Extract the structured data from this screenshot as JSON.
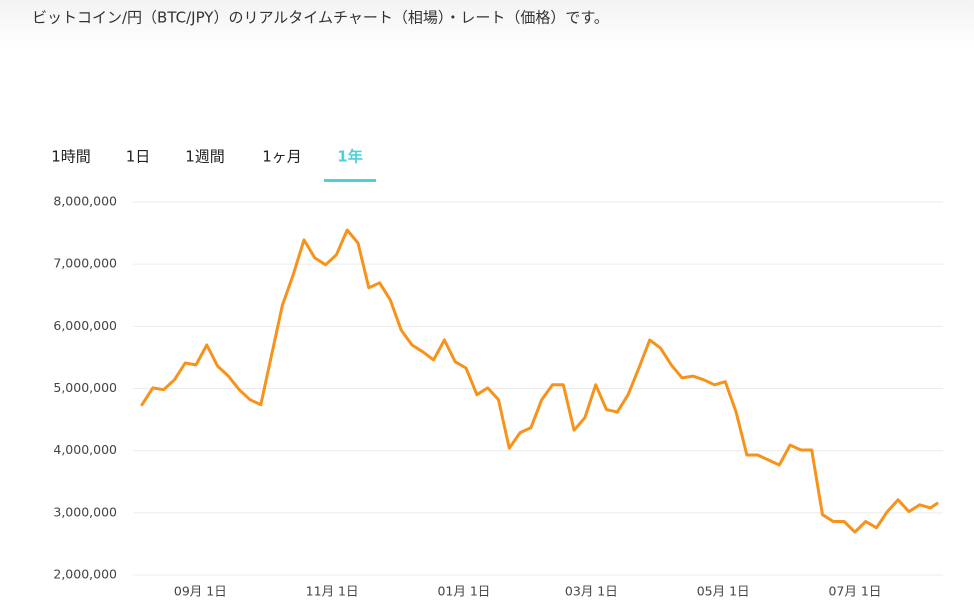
{
  "description": "ビットコイン/円（BTC/JPY）のリアルタイムチャート（相場）・レート（価格）です。",
  "tabs": {
    "items": [
      "1時間",
      "1日",
      "1週間",
      "1ヶ月",
      "1年"
    ],
    "selected": 4,
    "color": "#4dd0d8"
  },
  "chart_data": {
    "type": "line",
    "color": "#f7931a",
    "grid": true,
    "x": [
      "08月 5日",
      "08月 10日",
      "08月 15日",
      "08月 20日",
      "08月 25日",
      "08月 30日",
      "09月 4日",
      "09月 9日",
      "09月 14日",
      "09月 19日",
      "09月 24日",
      "09月 29日",
      "10月 4日",
      "10月 9日",
      "10月 14日",
      "10月 19日",
      "10月 24日",
      "10月 29日",
      "11月 3日",
      "11月 8日",
      "11月 13日",
      "11月 18日",
      "11月 23日",
      "11月 28日",
      "12月 3日",
      "12月 8日",
      "12月 13日",
      "12月 18日",
      "12月 23日",
      "12月 28日",
      "01月 2日",
      "01月 7日",
      "01月 12日",
      "01月 17日",
      "01月 22日",
      "01月 27日",
      "02月 1日",
      "02月 6日",
      "02月 11日",
      "02月 16日",
      "02月 21日",
      "02月 26日",
      "03月 3日",
      "03月 8日",
      "03月 13日",
      "03月 18日",
      "03月 23日",
      "03月 28日",
      "04月 2日",
      "04月 7日",
      "04月 12日",
      "04月 17日",
      "04月 22日",
      "04月 27日",
      "05月 2日",
      "05月 7日",
      "05月 12日",
      "05月 17日",
      "05月 22日",
      "05月 27日",
      "06月 1日",
      "06月 6日",
      "06月 11日",
      "06月 16日",
      "06月 21日",
      "06月 26日",
      "07月 1日",
      "07月 6日",
      "07月 11日",
      "07月 16日",
      "07月 21日",
      "07月 26日",
      "07月 31日",
      "08月 5日",
      "08月 8日"
    ],
    "values": [
      4740000,
      5010000,
      4980000,
      5140000,
      5410000,
      5380000,
      5700000,
      5360000,
      5200000,
      4980000,
      4820000,
      4740000,
      5540000,
      6340000,
      6830000,
      7390000,
      7100000,
      6990000,
      7150000,
      7550000,
      7340000,
      6620000,
      6700000,
      6420000,
      5940000,
      5700000,
      5590000,
      5460000,
      5780000,
      5430000,
      5330000,
      4900000,
      5010000,
      4820000,
      4040000,
      4290000,
      4370000,
      4820000,
      5060000,
      5060000,
      4330000,
      4530000,
      5060000,
      4660000,
      4620000,
      4900000,
      5330000,
      5780000,
      5650000,
      5380000,
      5170000,
      5200000,
      5140000,
      5060000,
      5110000,
      4620000,
      3930000,
      3930000,
      3850000,
      3770000,
      4090000,
      4010000,
      4010000,
      2970000,
      2860000,
      2860000,
      2690000,
      2860000,
      2760000,
      3020000,
      3210000,
      3020000,
      3130000,
      3080000,
      3150000
    ],
    "ylim": [
      2000000,
      8000000
    ],
    "yticks": [
      {
        "value": 2000000,
        "label": "2,000,000"
      },
      {
        "value": 3000000,
        "label": "3,000,000"
      },
      {
        "value": 4000000,
        "label": "4,000,000"
      },
      {
        "value": 5000000,
        "label": "5,000,000"
      },
      {
        "value": 6000000,
        "label": "6,000,000"
      },
      {
        "value": 7000000,
        "label": "7,000,000"
      },
      {
        "value": 8000000,
        "label": "8,000,000"
      }
    ],
    "xticks": [
      "09月 1日",
      "11月 1日",
      "01月 1日",
      "03月 1日",
      "05月 1日",
      "07月 1日"
    ]
  }
}
